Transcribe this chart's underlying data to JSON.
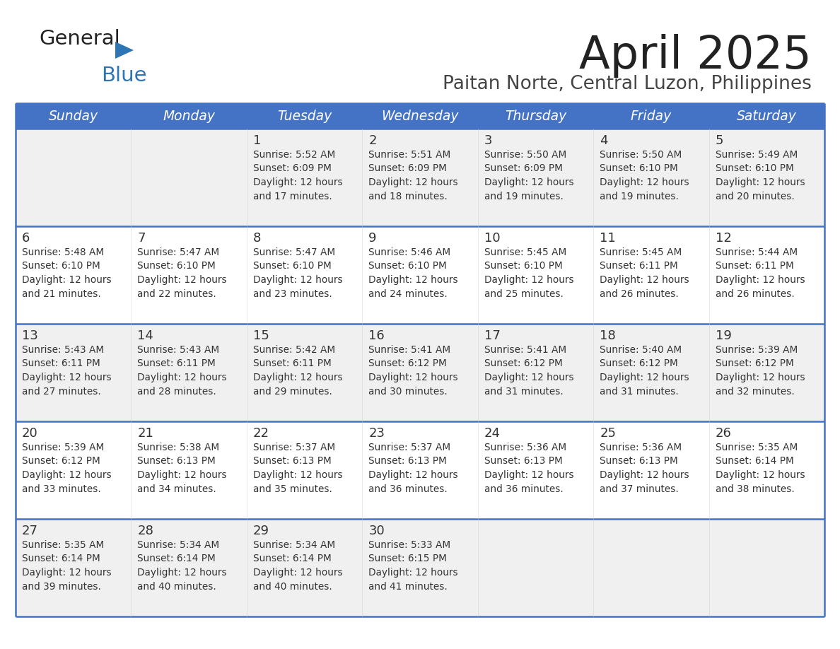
{
  "title": "April 2025",
  "subtitle": "Paitan Norte, Central Luzon, Philippines",
  "header_bg": "#4472C4",
  "header_text_color": "#FFFFFF",
  "weekdays": [
    "Sunday",
    "Monday",
    "Tuesday",
    "Wednesday",
    "Thursday",
    "Friday",
    "Saturday"
  ],
  "row_bg_odd": "#F0F0F0",
  "row_bg_even": "#FFFFFF",
  "cell_text_color": "#333333",
  "grid_color": "#4472C4",
  "logo_general_color": "#222222",
  "logo_blue_color": "#2E75B6",
  "logo_triangle_color": "#2E75B6",
  "title_color": "#222222",
  "subtitle_color": "#444444",
  "days": [
    {
      "day": null,
      "sunrise": null,
      "sunset": null,
      "daylight": null
    },
    {
      "day": null,
      "sunrise": null,
      "sunset": null,
      "daylight": null
    },
    {
      "day": 1,
      "sunrise": "5:52 AM",
      "sunset": "6:09 PM",
      "daylight": "12 hours and 17 minutes."
    },
    {
      "day": 2,
      "sunrise": "5:51 AM",
      "sunset": "6:09 PM",
      "daylight": "12 hours and 18 minutes."
    },
    {
      "day": 3,
      "sunrise": "5:50 AM",
      "sunset": "6:09 PM",
      "daylight": "12 hours and 19 minutes."
    },
    {
      "day": 4,
      "sunrise": "5:50 AM",
      "sunset": "6:10 PM",
      "daylight": "12 hours and 19 minutes."
    },
    {
      "day": 5,
      "sunrise": "5:49 AM",
      "sunset": "6:10 PM",
      "daylight": "12 hours and 20 minutes."
    },
    {
      "day": 6,
      "sunrise": "5:48 AM",
      "sunset": "6:10 PM",
      "daylight": "12 hours and 21 minutes."
    },
    {
      "day": 7,
      "sunrise": "5:47 AM",
      "sunset": "6:10 PM",
      "daylight": "12 hours and 22 minutes."
    },
    {
      "day": 8,
      "sunrise": "5:47 AM",
      "sunset": "6:10 PM",
      "daylight": "12 hours and 23 minutes."
    },
    {
      "day": 9,
      "sunrise": "5:46 AM",
      "sunset": "6:10 PM",
      "daylight": "12 hours and 24 minutes."
    },
    {
      "day": 10,
      "sunrise": "5:45 AM",
      "sunset": "6:10 PM",
      "daylight": "12 hours and 25 minutes."
    },
    {
      "day": 11,
      "sunrise": "5:45 AM",
      "sunset": "6:11 PM",
      "daylight": "12 hours and 26 minutes."
    },
    {
      "day": 12,
      "sunrise": "5:44 AM",
      "sunset": "6:11 PM",
      "daylight": "12 hours and 26 minutes."
    },
    {
      "day": 13,
      "sunrise": "5:43 AM",
      "sunset": "6:11 PM",
      "daylight": "12 hours and 27 minutes."
    },
    {
      "day": 14,
      "sunrise": "5:43 AM",
      "sunset": "6:11 PM",
      "daylight": "12 hours and 28 minutes."
    },
    {
      "day": 15,
      "sunrise": "5:42 AM",
      "sunset": "6:11 PM",
      "daylight": "12 hours and 29 minutes."
    },
    {
      "day": 16,
      "sunrise": "5:41 AM",
      "sunset": "6:12 PM",
      "daylight": "12 hours and 30 minutes."
    },
    {
      "day": 17,
      "sunrise": "5:41 AM",
      "sunset": "6:12 PM",
      "daylight": "12 hours and 31 minutes."
    },
    {
      "day": 18,
      "sunrise": "5:40 AM",
      "sunset": "6:12 PM",
      "daylight": "12 hours and 31 minutes."
    },
    {
      "day": 19,
      "sunrise": "5:39 AM",
      "sunset": "6:12 PM",
      "daylight": "12 hours and 32 minutes."
    },
    {
      "day": 20,
      "sunrise": "5:39 AM",
      "sunset": "6:12 PM",
      "daylight": "12 hours and 33 minutes."
    },
    {
      "day": 21,
      "sunrise": "5:38 AM",
      "sunset": "6:13 PM",
      "daylight": "12 hours and 34 minutes."
    },
    {
      "day": 22,
      "sunrise": "5:37 AM",
      "sunset": "6:13 PM",
      "daylight": "12 hours and 35 minutes."
    },
    {
      "day": 23,
      "sunrise": "5:37 AM",
      "sunset": "6:13 PM",
      "daylight": "12 hours and 36 minutes."
    },
    {
      "day": 24,
      "sunrise": "5:36 AM",
      "sunset": "6:13 PM",
      "daylight": "12 hours and 36 minutes."
    },
    {
      "day": 25,
      "sunrise": "5:36 AM",
      "sunset": "6:13 PM",
      "daylight": "12 hours and 37 minutes."
    },
    {
      "day": 26,
      "sunrise": "5:35 AM",
      "sunset": "6:14 PM",
      "daylight": "12 hours and 38 minutes."
    },
    {
      "day": 27,
      "sunrise": "5:35 AM",
      "sunset": "6:14 PM",
      "daylight": "12 hours and 39 minutes."
    },
    {
      "day": 28,
      "sunrise": "5:34 AM",
      "sunset": "6:14 PM",
      "daylight": "12 hours and 40 minutes."
    },
    {
      "day": 29,
      "sunrise": "5:34 AM",
      "sunset": "6:14 PM",
      "daylight": "12 hours and 40 minutes."
    },
    {
      "day": 30,
      "sunrise": "5:33 AM",
      "sunset": "6:15 PM",
      "daylight": "12 hours and 41 minutes."
    },
    {
      "day": null,
      "sunrise": null,
      "sunset": null,
      "daylight": null
    },
    {
      "day": null,
      "sunrise": null,
      "sunset": null,
      "daylight": null
    },
    {
      "day": null,
      "sunrise": null,
      "sunset": null,
      "daylight": null
    },
    {
      "day": null,
      "sunrise": null,
      "sunset": null,
      "daylight": null
    }
  ]
}
